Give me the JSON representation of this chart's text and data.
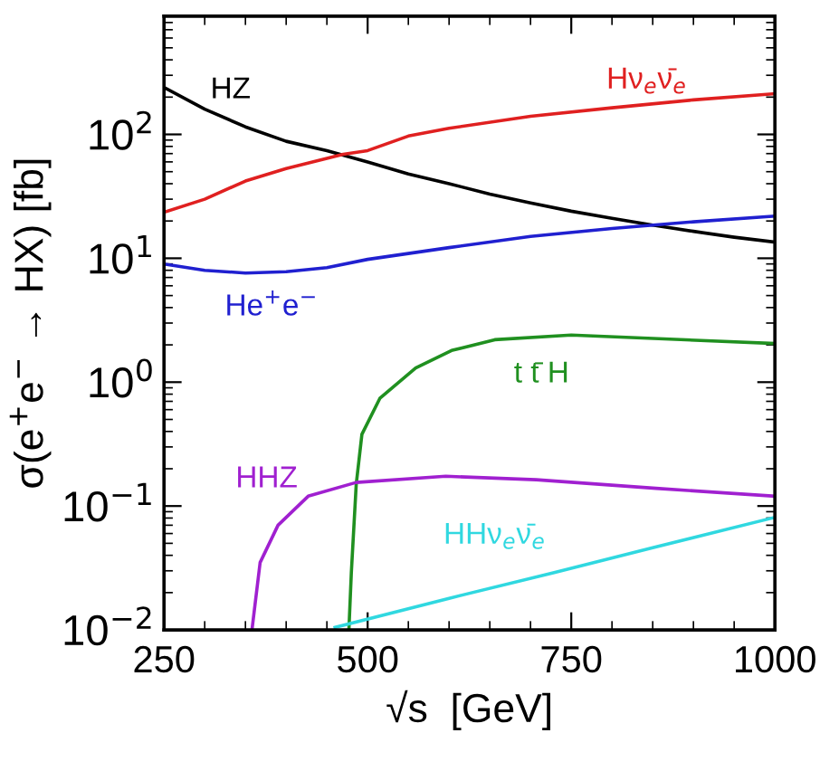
{
  "chart_data": {
    "type": "line",
    "xlabel": "√s  [GeV]",
    "ylabel": "σ(e$^{+}$e$^{−}$ → HX) [fb]",
    "log": "y",
    "xlim": [
      250,
      1000
    ],
    "xticks": [
      250,
      500,
      750,
      1000
    ],
    "ylim": [
      0.01,
      900
    ],
    "yticks": [
      {
        "value": 0.01,
        "label": "10$^{−2}$"
      },
      {
        "value": 0.1,
        "label": "10$^{−1}$"
      },
      {
        "value": 1,
        "label": "10$^{0}$"
      },
      {
        "value": 10,
        "label": "10$^{1}$"
      },
      {
        "value": 100,
        "label": "10$^{2}$"
      }
    ],
    "grid": false,
    "legend": false,
    "marker": "none",
    "line_style": "solid",
    "series": [
      {
        "name": "HZ",
        "color": "#000000",
        "x": [
          250,
          300,
          350,
          400,
          450,
          500,
          550,
          600,
          650,
          700,
          750,
          800,
          850,
          900,
          950,
          1000
        ],
        "values": [
          240,
          160,
          115,
          88,
          74,
          60,
          48,
          40,
          33,
          28,
          24,
          21,
          18.5,
          16.5,
          14.8,
          13.5
        ]
      },
      {
        "name": "Hν$_{e}$ν̄$_{e}$",
        "color": "#e02020",
        "x": [
          250,
          300,
          350,
          400,
          470,
          500,
          550,
          600,
          700,
          800,
          900,
          1000
        ],
        "values": [
          23.5,
          30,
          42,
          53,
          69,
          74,
          97,
          112,
          140,
          164,
          190,
          213
        ]
      },
      {
        "name": "He$^{+}$e$^{−}$",
        "color": "#2020d0",
        "x": [
          250,
          300,
          350,
          400,
          450,
          500,
          600,
          700,
          800,
          900,
          1000
        ],
        "values": [
          9,
          8,
          7.6,
          7.8,
          8.4,
          9.8,
          12.2,
          15,
          17.4,
          19.7,
          21.9
        ]
      },
      {
        "name": "t t̄ H",
        "color": "#209020",
        "x": [
          477,
          480,
          486,
          493,
          515,
          559,
          603,
          656,
          750,
          1000
        ],
        "values": [
          0.01,
          0.029,
          0.15,
          0.38,
          0.74,
          1.3,
          1.8,
          2.2,
          2.4,
          2.05
        ]
      },
      {
        "name": "HHZ",
        "color": "#a020d0",
        "x": [
          358,
          368,
          390,
          427,
          486,
          596,
          707,
          854,
          1000
        ],
        "values": [
          0.01,
          0.035,
          0.07,
          0.12,
          0.155,
          0.174,
          0.163,
          0.139,
          0.12
        ]
      },
      {
        "name": "HHν$_{e}$ν̄$_{e}$",
        "color": "#30d8e0",
        "x": [
          460,
          600,
          729,
          850,
          1000
        ],
        "values": [
          0.0105,
          0.018,
          0.029,
          0.046,
          0.081
        ]
      }
    ]
  }
}
